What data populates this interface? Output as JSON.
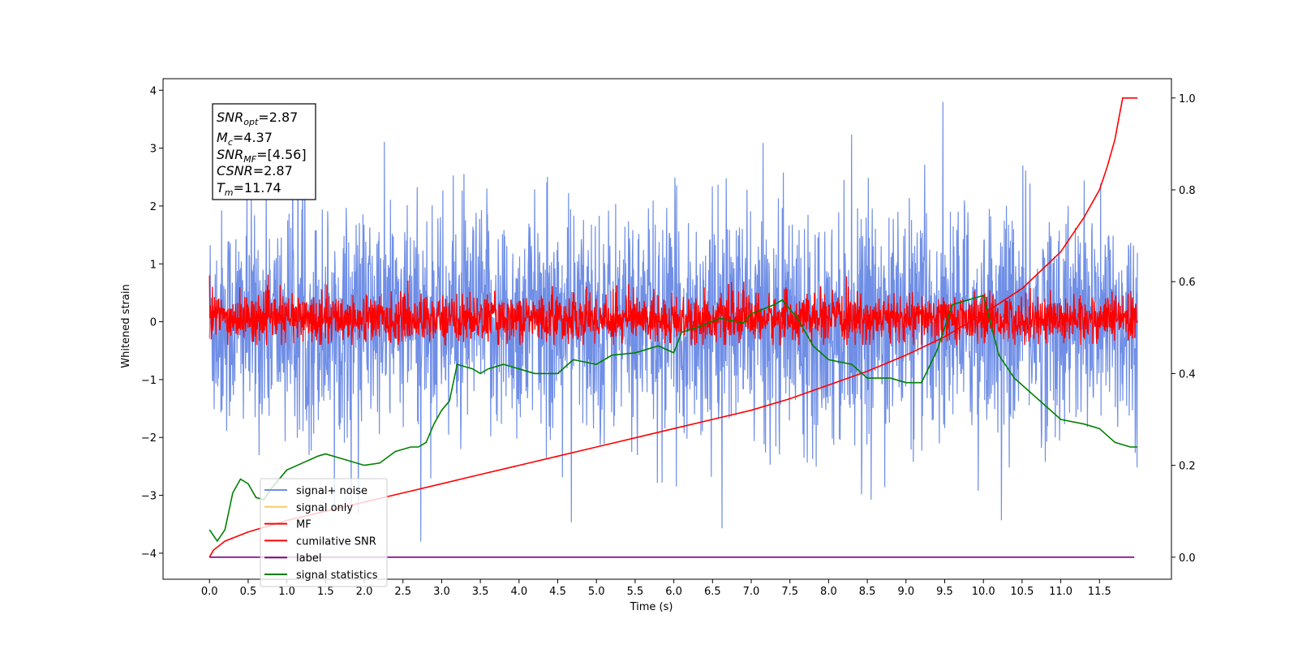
{
  "chart_data": {
    "type": "line",
    "xlabel": "Time (s)",
    "ylabel": "Whitened strain",
    "xlim": [
      -0.6,
      12.43
    ],
    "ylim": [
      -4.45,
      4.2
    ],
    "y2lim": [
      -0.048,
      1.042
    ],
    "xticks": [
      "0.0",
      "0.5",
      "1.0",
      "1.5",
      "2.0",
      "2.5",
      "3.0",
      "3.5",
      "4.0",
      "4.5",
      "5.0",
      "5.5",
      "6.0",
      "6.5",
      "7.0",
      "7.5",
      "8.0",
      "8.5",
      "9.0",
      "9.5",
      "10.0",
      "10.5",
      "11.0",
      "11.5"
    ],
    "yticks": [
      "−4",
      "−3",
      "−2",
      "−1",
      "0",
      "1",
      "2",
      "3",
      "4"
    ],
    "y2ticks": [
      "0.0",
      "0.2",
      "0.4",
      "0.6",
      "0.8",
      "1.0"
    ],
    "grid": false,
    "legend_position": "lower-left",
    "colors": {
      "signal_noise": "#6f8ee6",
      "signal_only": "#ffc966",
      "mf": "#ff0000",
      "cumulative_snr": "#ff0000",
      "label": "#800080",
      "signal_statistics": "#008000"
    },
    "series": [
      {
        "name": "signal+ noise",
        "axis": "left",
        "style": "noise",
        "x_range": [
          0,
          11.99
        ],
        "envelope_upper_typical": 1.9,
        "envelope_lower_typical": -1.9,
        "peak_max": 3.8,
        "peak_min": -3.8
      },
      {
        "name": "signal only",
        "axis": "left",
        "values": []
      },
      {
        "name": "MF",
        "axis": "left",
        "style": "noise",
        "x_range": [
          0,
          11.99
        ],
        "baseline": 0.0,
        "typical_upper": 0.55,
        "typical_lower": -0.38,
        "peak_max": 1.0,
        "peak_min": -0.4
      },
      {
        "name": "cumilative SNR",
        "axis": "right",
        "x": [
          0.0,
          0.05,
          0.2,
          0.5,
          1.0,
          1.5,
          2.0,
          2.5,
          3.0,
          3.5,
          4.0,
          4.5,
          5.0,
          5.5,
          6.0,
          6.5,
          7.0,
          7.5,
          8.0,
          8.5,
          9.0,
          9.5,
          10.0,
          10.5,
          11.0,
          11.3,
          11.5,
          11.6,
          11.7,
          11.75,
          11.8,
          11.99
        ],
        "y": [
          0.0,
          0.015,
          0.035,
          0.055,
          0.08,
          0.1,
          0.12,
          0.14,
          0.16,
          0.18,
          0.2,
          0.22,
          0.24,
          0.26,
          0.28,
          0.3,
          0.32,
          0.345,
          0.375,
          0.405,
          0.44,
          0.48,
          0.53,
          0.585,
          0.665,
          0.74,
          0.8,
          0.85,
          0.91,
          0.955,
          1.0,
          1.0
        ]
      },
      {
        "name": "label",
        "axis": "right",
        "x": [
          0.0,
          11.95
        ],
        "y": [
          0.0,
          0.0
        ]
      },
      {
        "name": "signal statistics",
        "axis": "right",
        "x": [
          0.0,
          0.1,
          0.2,
          0.3,
          0.4,
          0.5,
          0.6,
          0.7,
          0.8,
          1.0,
          1.2,
          1.4,
          1.5,
          1.7,
          2.0,
          2.2,
          2.4,
          2.6,
          2.7,
          2.8,
          2.9,
          3.0,
          3.1,
          3.2,
          3.4,
          3.5,
          3.6,
          3.8,
          4.0,
          4.2,
          4.5,
          4.7,
          5.0,
          5.2,
          5.5,
          5.8,
          6.0,
          6.1,
          6.3,
          6.6,
          6.9,
          7.0,
          7.3,
          7.4,
          7.6,
          7.8,
          8.0,
          8.3,
          8.5,
          8.8,
          9.0,
          9.2,
          9.4,
          9.6,
          9.8,
          10.0,
          10.2,
          10.4,
          10.6,
          11.0,
          11.3,
          11.5,
          11.7,
          11.9,
          11.99
        ],
        "y": [
          0.06,
          0.035,
          0.06,
          0.14,
          0.17,
          0.16,
          0.13,
          0.125,
          0.15,
          0.19,
          0.205,
          0.22,
          0.225,
          0.215,
          0.2,
          0.205,
          0.23,
          0.24,
          0.24,
          0.25,
          0.29,
          0.32,
          0.34,
          0.42,
          0.41,
          0.4,
          0.41,
          0.42,
          0.41,
          0.4,
          0.4,
          0.43,
          0.42,
          0.44,
          0.445,
          0.46,
          0.445,
          0.49,
          0.5,
          0.52,
          0.51,
          0.53,
          0.55,
          0.56,
          0.52,
          0.46,
          0.43,
          0.42,
          0.39,
          0.39,
          0.38,
          0.38,
          0.45,
          0.55,
          0.56,
          0.57,
          0.44,
          0.39,
          0.36,
          0.3,
          0.29,
          0.28,
          0.25,
          0.24,
          0.24
        ]
      }
    ],
    "annotations": {
      "snr_opt": "=2.87",
      "mc": "=4.37",
      "snr_mf": "=[4.56]",
      "csnr": "=2.87",
      "tm": "=11.74"
    }
  }
}
